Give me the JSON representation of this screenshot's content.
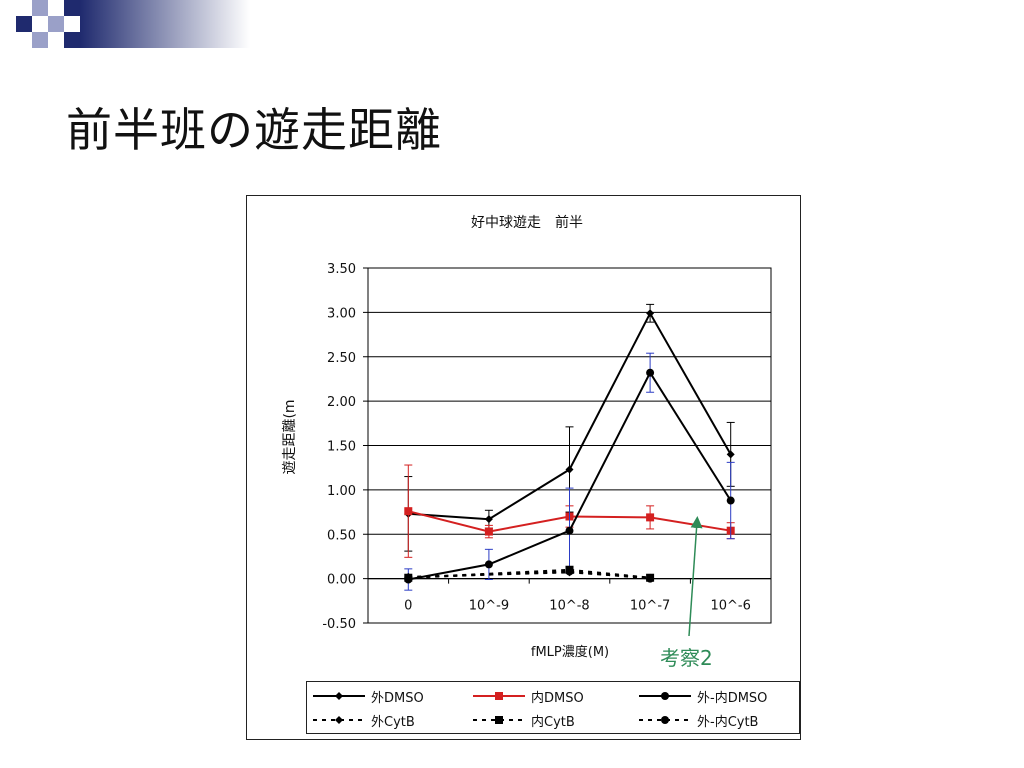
{
  "slide": {
    "title": "前半班の遊走距離"
  },
  "annotation": {
    "text": "考察2",
    "color": "#2e8b57"
  },
  "colors": {
    "deco_navy": "#1f2a6e",
    "deco_light": "#9aa0c8",
    "black": "#000000",
    "red": "#d42020",
    "blue_errorbar": "#2b3cc4"
  },
  "chart_data": {
    "type": "line",
    "title": "好中球遊走　前半",
    "xlabel": "fMLP濃度(M)",
    "ylabel": "遊走距離(m",
    "categories": [
      "0",
      "10^-9",
      "10^-8",
      "10^-7",
      "10^-6"
    ],
    "ylim": [
      -0.5,
      3.5
    ],
    "yticks": [
      "3.50",
      "3.00",
      "2.50",
      "2.00",
      "1.50",
      "1.00",
      "0.50",
      "0.00",
      "-0.50"
    ],
    "grid": true,
    "legend_position": "bottom",
    "series": [
      {
        "name": "外DMSO",
        "values": [
          0.73,
          0.67,
          1.23,
          2.99,
          1.4
        ],
        "errors": [
          0.42,
          0.1,
          0.48,
          0.1,
          0.36
        ],
        "color": "#000000",
        "marker": "diamond",
        "dash": false
      },
      {
        "name": "内DMSO",
        "values": [
          0.76,
          0.53,
          0.7,
          0.69,
          0.54
        ],
        "errors": [
          0.52,
          0.07,
          0.12,
          0.13,
          0.09
        ],
        "color": "#d42020",
        "marker": "square",
        "dash": false
      },
      {
        "name": "外-内DMSO",
        "values": [
          -0.01,
          0.16,
          0.54,
          2.32,
          0.88
        ],
        "errors": [
          0.12,
          0.17,
          0.48,
          0.22,
          0.43
        ],
        "color": "#000000",
        "marker": "circle",
        "dash": false
      },
      {
        "name": "外CytB",
        "values": [
          0.02,
          null,
          0.07,
          0.01,
          null
        ],
        "errors": [
          0,
          0,
          0,
          0,
          0
        ],
        "color": "#000000",
        "marker": "diamond",
        "dash": true
      },
      {
        "name": "内CytB",
        "values": [
          0.01,
          null,
          0.1,
          0.01,
          null
        ],
        "errors": [
          0,
          0,
          0,
          0,
          0
        ],
        "color": "#000000",
        "marker": "square",
        "dash": true
      },
      {
        "name": "外-内CytB",
        "values": [
          0.01,
          null,
          0.08,
          0.0,
          null
        ],
        "errors": [
          0,
          0,
          0,
          0,
          0
        ],
        "color": "#000000",
        "marker": "circle",
        "dash": true
      }
    ]
  }
}
